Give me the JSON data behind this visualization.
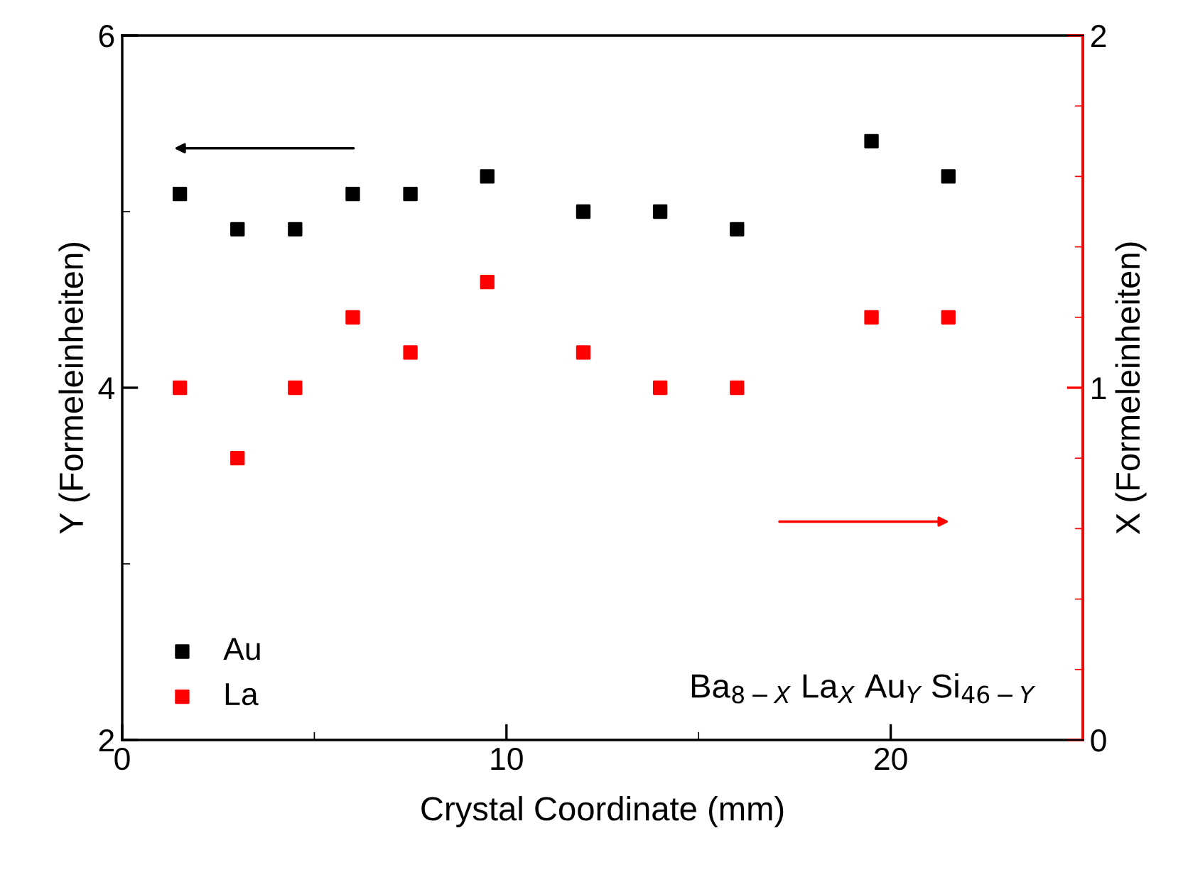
{
  "chart_data": {
    "type": "scatter",
    "xlabel": "Crystal Coordinate (mm)",
    "ylabel": "Y (Formeleinheiten)",
    "y2label": "X (Formeleinheiten)",
    "xlim": [
      0,
      25
    ],
    "xticks": [
      0,
      10,
      20
    ],
    "ylim": [
      2,
      6
    ],
    "yticks": [
      2,
      4,
      6
    ],
    "y2lim": [
      0,
      2
    ],
    "y2ticks": [
      0,
      1,
      2
    ],
    "marker": "square",
    "legend": "bottom left",
    "grid": false,
    "annotations": [
      "Ba$_{8−X}$ La$_{X}$ Au$_{Y}$ Si$_{46−Y}$"
    ],
    "series": [
      {
        "name": "Au",
        "color": "#000000",
        "x": [
          1.5,
          3,
          4.5,
          6,
          7.5,
          9.5,
          12,
          14,
          16,
          19.5,
          21.5
        ],
        "values": [
          5.1,
          4.9,
          4.9,
          5.1,
          5.1,
          5.2,
          5.0,
          5.0,
          4.9,
          5.4,
          5.2
        ]
      },
      {
        "name": "La",
        "color": "#ff0000",
        "axis": "y2",
        "x": [
          1.5,
          3,
          4.5,
          6,
          7.5,
          9.5,
          12,
          14,
          16,
          19.5,
          21.5
        ],
        "values": [
          1.0,
          0.8,
          1.0,
          1.2,
          1.1,
          1.3,
          1.1,
          1.0,
          1.0,
          1.2,
          1.2
        ]
      }
    ]
  }
}
